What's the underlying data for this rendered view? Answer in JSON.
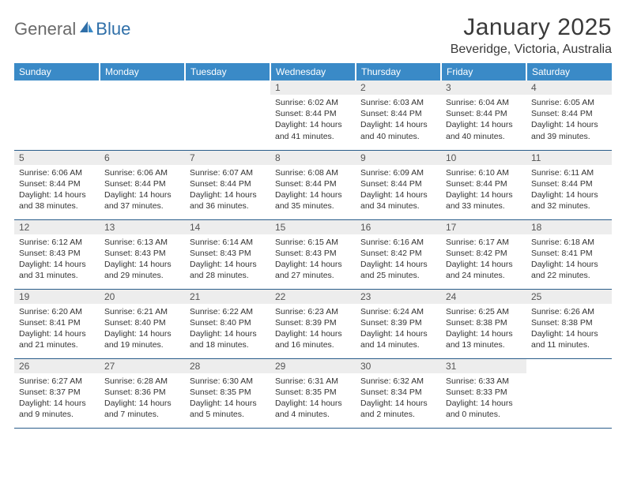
{
  "logo": {
    "general": "General",
    "blue": "Blue"
  },
  "title": "January 2025",
  "location": "Beveridge, Victoria, Australia",
  "colors": {
    "header_bg": "#3a8ac7",
    "header_text": "#ffffff",
    "daynum_bg": "#ededed",
    "daynum_text": "#555555",
    "row_border": "#2a5d8a",
    "logo_general": "#6a6a6a",
    "logo_blue": "#2f6fa8"
  },
  "weekdays": [
    "Sunday",
    "Monday",
    "Tuesday",
    "Wednesday",
    "Thursday",
    "Friday",
    "Saturday"
  ],
  "weeks": [
    [
      null,
      null,
      null,
      {
        "n": "1",
        "sr": "6:02 AM",
        "ss": "8:44 PM",
        "dl": "14 hours and 41 minutes."
      },
      {
        "n": "2",
        "sr": "6:03 AM",
        "ss": "8:44 PM",
        "dl": "14 hours and 40 minutes."
      },
      {
        "n": "3",
        "sr": "6:04 AM",
        "ss": "8:44 PM",
        "dl": "14 hours and 40 minutes."
      },
      {
        "n": "4",
        "sr": "6:05 AM",
        "ss": "8:44 PM",
        "dl": "14 hours and 39 minutes."
      }
    ],
    [
      {
        "n": "5",
        "sr": "6:06 AM",
        "ss": "8:44 PM",
        "dl": "14 hours and 38 minutes."
      },
      {
        "n": "6",
        "sr": "6:06 AM",
        "ss": "8:44 PM",
        "dl": "14 hours and 37 minutes."
      },
      {
        "n": "7",
        "sr": "6:07 AM",
        "ss": "8:44 PM",
        "dl": "14 hours and 36 minutes."
      },
      {
        "n": "8",
        "sr": "6:08 AM",
        "ss": "8:44 PM",
        "dl": "14 hours and 35 minutes."
      },
      {
        "n": "9",
        "sr": "6:09 AM",
        "ss": "8:44 PM",
        "dl": "14 hours and 34 minutes."
      },
      {
        "n": "10",
        "sr": "6:10 AM",
        "ss": "8:44 PM",
        "dl": "14 hours and 33 minutes."
      },
      {
        "n": "11",
        "sr": "6:11 AM",
        "ss": "8:44 PM",
        "dl": "14 hours and 32 minutes."
      }
    ],
    [
      {
        "n": "12",
        "sr": "6:12 AM",
        "ss": "8:43 PM",
        "dl": "14 hours and 31 minutes."
      },
      {
        "n": "13",
        "sr": "6:13 AM",
        "ss": "8:43 PM",
        "dl": "14 hours and 29 minutes."
      },
      {
        "n": "14",
        "sr": "6:14 AM",
        "ss": "8:43 PM",
        "dl": "14 hours and 28 minutes."
      },
      {
        "n": "15",
        "sr": "6:15 AM",
        "ss": "8:43 PM",
        "dl": "14 hours and 27 minutes."
      },
      {
        "n": "16",
        "sr": "6:16 AM",
        "ss": "8:42 PM",
        "dl": "14 hours and 25 minutes."
      },
      {
        "n": "17",
        "sr": "6:17 AM",
        "ss": "8:42 PM",
        "dl": "14 hours and 24 minutes."
      },
      {
        "n": "18",
        "sr": "6:18 AM",
        "ss": "8:41 PM",
        "dl": "14 hours and 22 minutes."
      }
    ],
    [
      {
        "n": "19",
        "sr": "6:20 AM",
        "ss": "8:41 PM",
        "dl": "14 hours and 21 minutes."
      },
      {
        "n": "20",
        "sr": "6:21 AM",
        "ss": "8:40 PM",
        "dl": "14 hours and 19 minutes."
      },
      {
        "n": "21",
        "sr": "6:22 AM",
        "ss": "8:40 PM",
        "dl": "14 hours and 18 minutes."
      },
      {
        "n": "22",
        "sr": "6:23 AM",
        "ss": "8:39 PM",
        "dl": "14 hours and 16 minutes."
      },
      {
        "n": "23",
        "sr": "6:24 AM",
        "ss": "8:39 PM",
        "dl": "14 hours and 14 minutes."
      },
      {
        "n": "24",
        "sr": "6:25 AM",
        "ss": "8:38 PM",
        "dl": "14 hours and 13 minutes."
      },
      {
        "n": "25",
        "sr": "6:26 AM",
        "ss": "8:38 PM",
        "dl": "14 hours and 11 minutes."
      }
    ],
    [
      {
        "n": "26",
        "sr": "6:27 AM",
        "ss": "8:37 PM",
        "dl": "14 hours and 9 minutes."
      },
      {
        "n": "27",
        "sr": "6:28 AM",
        "ss": "8:36 PM",
        "dl": "14 hours and 7 minutes."
      },
      {
        "n": "28",
        "sr": "6:30 AM",
        "ss": "8:35 PM",
        "dl": "14 hours and 5 minutes."
      },
      {
        "n": "29",
        "sr": "6:31 AM",
        "ss": "8:35 PM",
        "dl": "14 hours and 4 minutes."
      },
      {
        "n": "30",
        "sr": "6:32 AM",
        "ss": "8:34 PM",
        "dl": "14 hours and 2 minutes."
      },
      {
        "n": "31",
        "sr": "6:33 AM",
        "ss": "8:33 PM",
        "dl": "14 hours and 0 minutes."
      },
      null
    ]
  ],
  "labels": {
    "sunrise": "Sunrise:",
    "sunset": "Sunset:",
    "daylight": "Daylight:"
  }
}
